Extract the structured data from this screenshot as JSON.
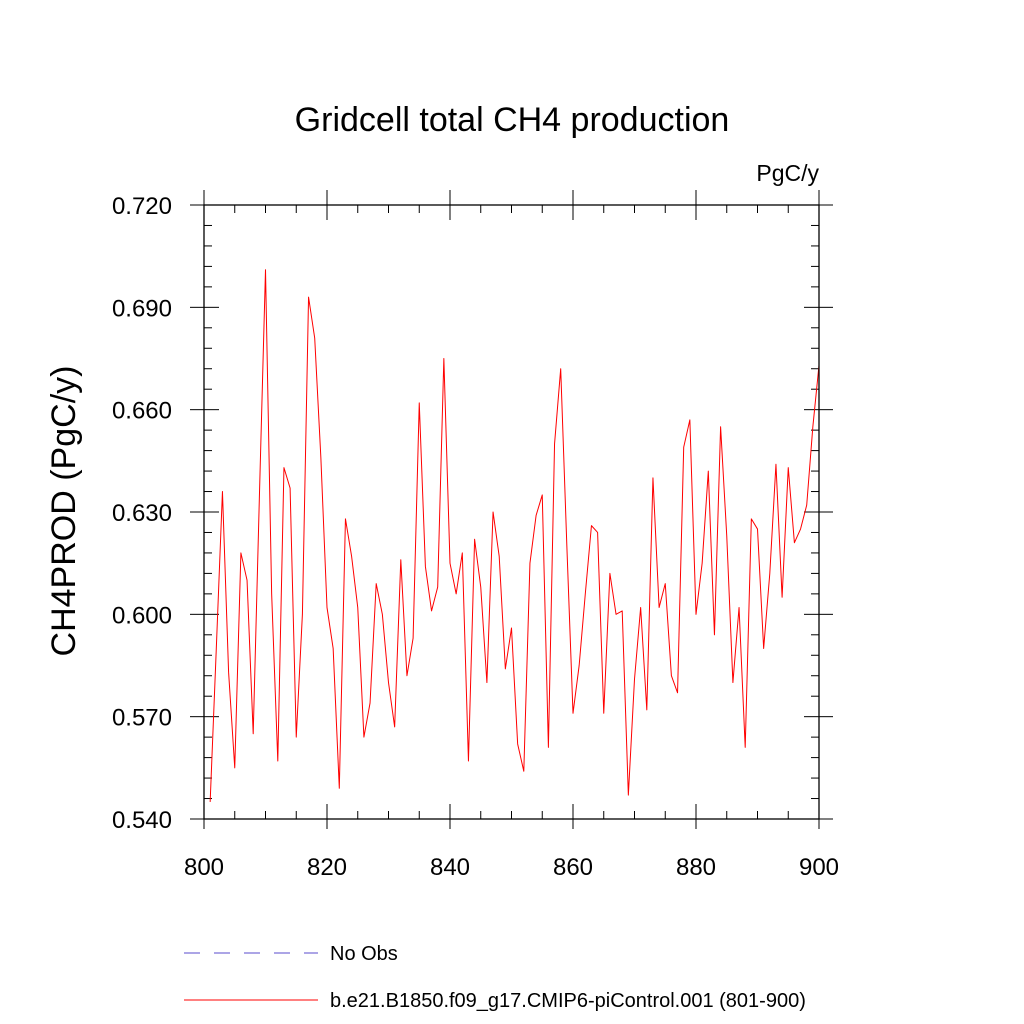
{
  "chart_data": {
    "type": "line",
    "title": "Gridcell total CH4 production",
    "units_label": "PgC/y",
    "ylabel": "CH4PROD  (PgC/y)",
    "xlabel": "",
    "xlim": [
      800,
      900
    ],
    "ylim": [
      0.54,
      0.72
    ],
    "xticks": [
      800,
      820,
      840,
      860,
      880,
      900
    ],
    "xtick_labels": [
      "800",
      "820",
      "840",
      "860",
      "880",
      "900"
    ],
    "yticks": [
      0.54,
      0.57,
      0.6,
      0.63,
      0.66,
      0.69,
      0.72
    ],
    "ytick_labels": [
      "0.540",
      "0.570",
      "0.600",
      "0.630",
      "0.660",
      "0.690",
      "0.720"
    ],
    "grid": false,
    "legend_position": "bottom",
    "series": [
      {
        "name": "No Obs",
        "color": "#7b6fd6",
        "dash": true,
        "x": [],
        "values": []
      },
      {
        "name": "b.e21.B1850.f09_g17.CMIP6-piControl.001 (801-900)",
        "color": "#ff0000",
        "dash": false,
        "x": [
          801,
          802,
          803,
          804,
          805,
          806,
          807,
          808,
          809,
          810,
          811,
          812,
          813,
          814,
          815,
          816,
          817,
          818,
          819,
          820,
          821,
          822,
          823,
          824,
          825,
          826,
          827,
          828,
          829,
          830,
          831,
          832,
          833,
          834,
          835,
          836,
          837,
          838,
          839,
          840,
          841,
          842,
          843,
          844,
          845,
          846,
          847,
          848,
          849,
          850,
          851,
          852,
          853,
          854,
          855,
          856,
          857,
          858,
          859,
          860,
          861,
          862,
          863,
          864,
          865,
          866,
          867,
          868,
          869,
          870,
          871,
          872,
          873,
          874,
          875,
          876,
          877,
          878,
          879,
          880,
          881,
          882,
          883,
          884,
          885,
          886,
          887,
          888,
          889,
          890,
          891,
          892,
          893,
          894,
          895,
          896,
          897,
          898,
          899,
          900
        ],
        "values": [
          0.545,
          0.59,
          0.636,
          0.583,
          0.555,
          0.618,
          0.61,
          0.565,
          0.634,
          0.701,
          0.606,
          0.557,
          0.643,
          0.637,
          0.564,
          0.6,
          0.693,
          0.681,
          0.646,
          0.602,
          0.59,
          0.549,
          0.628,
          0.617,
          0.602,
          0.564,
          0.574,
          0.609,
          0.6,
          0.58,
          0.567,
          0.616,
          0.582,
          0.593,
          0.662,
          0.614,
          0.601,
          0.608,
          0.675,
          0.615,
          0.606,
          0.618,
          0.557,
          0.622,
          0.608,
          0.58,
          0.63,
          0.617,
          0.584,
          0.596,
          0.562,
          0.554,
          0.615,
          0.629,
          0.635,
          0.561,
          0.65,
          0.672,
          0.62,
          0.571,
          0.585,
          0.606,
          0.626,
          0.624,
          0.571,
          0.612,
          0.6,
          0.601,
          0.547,
          0.581,
          0.602,
          0.572,
          0.64,
          0.602,
          0.609,
          0.582,
          0.577,
          0.649,
          0.657,
          0.6,
          0.615,
          0.642,
          0.594,
          0.655,
          0.623,
          0.58,
          0.602,
          0.561,
          0.628,
          0.625,
          0.59,
          0.612,
          0.644,
          0.605,
          0.643,
          0.621,
          0.625,
          0.632,
          0.655,
          0.673
        ]
      }
    ]
  }
}
